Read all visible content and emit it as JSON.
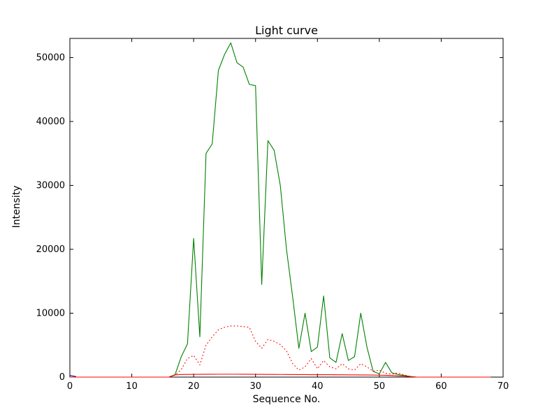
{
  "chart_data": {
    "type": "line",
    "title": "Light curve",
    "xlabel": "Sequence No.",
    "ylabel": "Intensity",
    "xlim": [
      0,
      70
    ],
    "ylim": [
      0,
      53000
    ],
    "xticks": [
      0,
      10,
      20,
      30,
      40,
      50,
      60,
      70
    ],
    "yticks": [
      0,
      10000,
      20000,
      30000,
      40000,
      50000
    ],
    "grid": false,
    "legend": "none",
    "x": [
      0,
      1,
      2,
      3,
      4,
      5,
      6,
      7,
      8,
      9,
      10,
      11,
      12,
      13,
      14,
      15,
      16,
      17,
      18,
      19,
      20,
      21,
      22,
      23,
      24,
      25,
      26,
      27,
      28,
      29,
      30,
      31,
      32,
      33,
      34,
      35,
      36,
      37,
      38,
      39,
      40,
      41,
      42,
      43,
      44,
      45,
      46,
      47,
      48,
      49,
      50,
      51,
      52,
      53,
      54,
      55,
      56,
      57,
      58,
      59,
      60,
      61,
      62,
      63,
      64,
      65,
      66,
      67,
      68
    ],
    "series": [
      {
        "name": "intensity-green-solid",
        "color": "#008000",
        "style": "solid",
        "y": [
          0,
          0,
          0,
          0,
          0,
          0,
          0,
          0,
          0,
          0,
          0,
          0,
          0,
          0,
          0,
          0,
          0,
          400,
          3200,
          5200,
          21700,
          6300,
          35000,
          36500,
          48000,
          50500,
          52300,
          49200,
          48500,
          45800,
          45600,
          14500,
          37000,
          35500,
          30000,
          20000,
          12500,
          4500,
          10000,
          4000,
          4700,
          12700,
          3000,
          2300,
          6800,
          2600,
          3200,
          10000,
          4700,
          900,
          500,
          2300,
          700,
          400,
          250,
          100,
          0,
          0,
          0,
          0,
          0,
          0,
          0,
          0,
          0,
          0,
          0,
          0,
          0
        ]
      },
      {
        "name": "background-red-dotted",
        "color": "#ff0000",
        "style": "dotted",
        "y": [
          0,
          0,
          0,
          0,
          0,
          0,
          0,
          0,
          0,
          0,
          0,
          0,
          0,
          0,
          0,
          0,
          0,
          300,
          1200,
          2900,
          3400,
          1900,
          5000,
          6300,
          7400,
          7800,
          8000,
          8000,
          7900,
          7800,
          5600,
          4500,
          5900,
          5600,
          5100,
          4100,
          2100,
          1100,
          1600,
          2900,
          1300,
          2600,
          1600,
          1300,
          2100,
          1300,
          1100,
          2100,
          1600,
          900,
          1100,
          600,
          450,
          650,
          350,
          100,
          0,
          0,
          0,
          0,
          0,
          0,
          0,
          0,
          0,
          0,
          0,
          0,
          0
        ]
      },
      {
        "name": "baseline-red-solid",
        "color": "#ff0000",
        "style": "solid",
        "y": [
          0,
          0,
          0,
          0,
          0,
          0,
          0,
          0,
          0,
          0,
          0,
          0,
          0,
          0,
          0,
          0,
          0,
          350,
          400,
          420,
          430,
          430,
          440,
          440,
          450,
          450,
          450,
          450,
          440,
          440,
          430,
          430,
          420,
          420,
          410,
          400,
          400,
          390,
          390,
          380,
          380,
          370,
          370,
          360,
          360,
          350,
          350,
          340,
          330,
          320,
          300,
          280,
          250,
          200,
          150,
          80,
          0,
          0,
          0,
          0,
          0,
          0,
          0,
          0,
          0,
          0,
          0,
          0,
          0
        ]
      }
    ],
    "extra_series": [
      {
        "name": "start-mark-blue",
        "color": "#000080",
        "style": "solid",
        "x": [
          0,
          1
        ],
        "y": [
          250,
          80
        ]
      }
    ]
  }
}
